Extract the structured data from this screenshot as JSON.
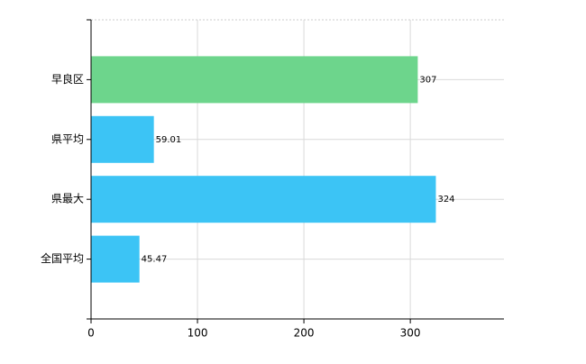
{
  "chart_data": {
    "type": "bar",
    "orientation": "horizontal",
    "categories": [
      "早良区",
      "県平均",
      "県最大",
      "全国平均"
    ],
    "values": [
      307,
      59.01,
      324,
      45.47
    ],
    "colors": [
      "#6dd58c",
      "#3cc4f5",
      "#3cc4f5",
      "#3cc4f5"
    ],
    "xlim": [
      0,
      388
    ],
    "xticks": [
      0,
      100,
      200,
      300
    ],
    "grid": true
  }
}
